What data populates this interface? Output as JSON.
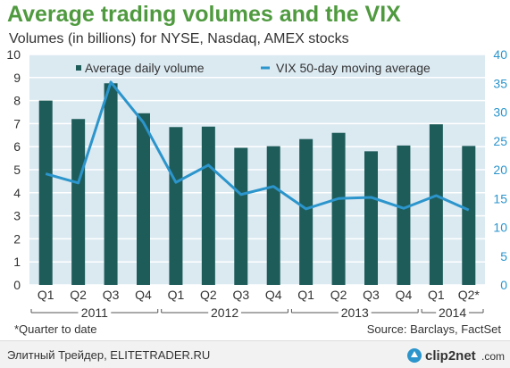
{
  "chart_data": {
    "type": "bar",
    "title": "Average trading volumes and the VIX",
    "subtitle": "Volumes (in billions) for NYSE, Nasdaq, AMEX stocks",
    "categories": [
      "Q1",
      "Q2",
      "Q3",
      "Q4",
      "Q1",
      "Q2",
      "Q3",
      "Q4",
      "Q1",
      "Q2",
      "Q3",
      "Q4",
      "Q1",
      "Q2*"
    ],
    "groups": [
      {
        "label": "2011",
        "start": 0,
        "end": 3
      },
      {
        "label": "2012",
        "start": 4,
        "end": 7
      },
      {
        "label": "2013",
        "start": 8,
        "end": 11
      },
      {
        "label": "2014",
        "start": 12,
        "end": 13
      }
    ],
    "series": [
      {
        "name": "Average daily volume",
        "type": "bar",
        "axis": "left",
        "color": "#1e5c5a",
        "values": [
          8.0,
          7.2,
          8.75,
          7.45,
          6.85,
          6.87,
          5.95,
          6.02,
          6.33,
          6.6,
          5.8,
          6.05,
          6.97,
          6.03
        ]
      },
      {
        "name": "VIX 50-day moving average",
        "type": "line",
        "axis": "right",
        "color": "#2b95cc",
        "values": [
          19.3,
          17.7,
          35.2,
          28.2,
          17.8,
          20.8,
          15.7,
          17.1,
          13.2,
          15.0,
          15.2,
          13.3,
          15.5,
          13.0
        ]
      }
    ],
    "ylim_left": [
      0,
      10
    ],
    "yticks_left": [
      0,
      1,
      2,
      3,
      4,
      5,
      6,
      7,
      8,
      9,
      10
    ],
    "ylim_right": [
      0,
      40
    ],
    "yticks_right": [
      0,
      5,
      10,
      15,
      20,
      25,
      30,
      35,
      40
    ],
    "grid": true,
    "legend_position": "top"
  },
  "footnote": "*Quarter to date",
  "source": "Source: Barclays, FactSet",
  "watermark": "Элитный Трейдер, ELITETRADER.RU",
  "logo": "clip2net.com",
  "colors": {
    "title": "#4f9a3f",
    "plot_background": "#dbe9f1",
    "gridline": "#ffffff",
    "bar": "#1e5c5a",
    "line": "#2b95cc",
    "right_axis_text": "#2b95cc"
  }
}
